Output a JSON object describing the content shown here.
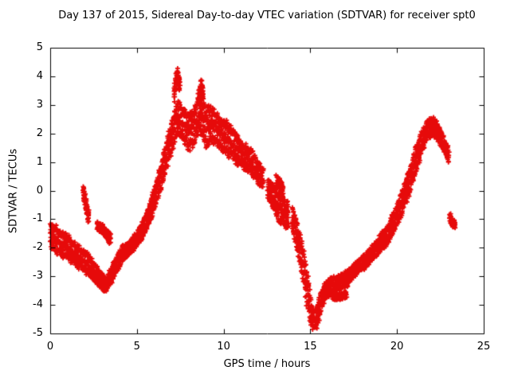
{
  "chart_data": {
    "type": "scatter",
    "title": "Day 137 of 2015, Sidereal Day-to-day VTEC variation (SDTVAR) for receiver spt0",
    "xlabel": "GPS time / hours",
    "ylabel": "SDTVAR / TECUs",
    "xlim": [
      0,
      25
    ],
    "ylim": [
      -5,
      5
    ],
    "xticks": [
      0,
      5,
      10,
      15,
      20,
      25
    ],
    "yticks": [
      -5,
      -4,
      -3,
      -2,
      -1,
      0,
      1,
      2,
      3,
      4,
      5
    ],
    "grid": false,
    "legend": "none",
    "marker": "plus",
    "marker_color": "#e60a0a",
    "axis_color": "#000000",
    "series": [
      {
        "name": "sdtvar-main-segment-1",
        "anchors": [
          [
            0.0,
            -1.5,
            0.6
          ],
          [
            0.3,
            -1.7,
            0.6
          ],
          [
            0.7,
            -1.9,
            0.6
          ],
          [
            1.0,
            -2.0,
            0.6
          ],
          [
            1.4,
            -2.2,
            0.55
          ],
          [
            1.8,
            -2.4,
            0.5
          ],
          [
            2.2,
            -2.6,
            0.5
          ],
          [
            2.6,
            -2.9,
            0.45
          ],
          [
            3.0,
            -3.2,
            0.35
          ],
          [
            3.2,
            -3.3,
            0.3
          ],
          [
            3.5,
            -3.0,
            0.35
          ],
          [
            3.8,
            -2.6,
            0.35
          ],
          [
            4.2,
            -2.2,
            0.35
          ],
          [
            4.6,
            -2.0,
            0.3
          ],
          [
            5.0,
            -1.7,
            0.35
          ],
          [
            5.4,
            -1.3,
            0.4
          ],
          [
            5.8,
            -0.7,
            0.45
          ],
          [
            6.2,
            0.1,
            0.55
          ],
          [
            6.6,
            1.0,
            0.65
          ],
          [
            7.0,
            1.9,
            0.75
          ],
          [
            7.3,
            2.5,
            0.8
          ],
          [
            7.6,
            2.4,
            0.8
          ],
          [
            8.0,
            2.0,
            0.9
          ],
          [
            8.3,
            2.3,
            0.85
          ],
          [
            8.6,
            2.7,
            0.8
          ],
          [
            9.0,
            2.2,
            0.9
          ],
          [
            9.3,
            2.4,
            0.8
          ],
          [
            9.7,
            2.1,
            0.8
          ],
          [
            10.0,
            1.9,
            0.8
          ],
          [
            10.4,
            1.7,
            0.75
          ],
          [
            10.8,
            1.4,
            0.7
          ],
          [
            11.2,
            1.2,
            0.65
          ],
          [
            11.6,
            1.0,
            0.6
          ],
          [
            12.0,
            0.6,
            0.5
          ],
          [
            12.3,
            0.4,
            0.45
          ]
        ]
      },
      {
        "name": "sdtvar-main-segment-2",
        "anchors": [
          [
            12.55,
            0.1,
            0.5
          ],
          [
            12.9,
            -0.3,
            0.6
          ],
          [
            13.2,
            -0.6,
            0.7
          ],
          [
            13.5,
            -0.8,
            0.7
          ],
          [
            13.75,
            -0.9,
            0.6
          ]
        ]
      },
      {
        "name": "sdtvar-main-segment-3",
        "anchors": [
          [
            13.95,
            -1.0,
            0.55
          ],
          [
            14.2,
            -1.5,
            0.65
          ],
          [
            14.5,
            -2.3,
            0.8
          ],
          [
            14.8,
            -3.3,
            0.85
          ],
          [
            15.0,
            -4.1,
            0.7
          ],
          [
            15.15,
            -4.5,
            0.5
          ],
          [
            15.35,
            -4.5,
            0.45
          ],
          [
            15.6,
            -3.9,
            0.5
          ],
          [
            15.9,
            -3.5,
            0.4
          ],
          [
            16.3,
            -3.3,
            0.35
          ],
          [
            16.7,
            -3.2,
            0.35
          ],
          [
            17.1,
            -3.1,
            0.35
          ],
          [
            17.5,
            -2.8,
            0.3
          ],
          [
            17.9,
            -2.6,
            0.3
          ],
          [
            18.3,
            -2.4,
            0.35
          ],
          [
            18.7,
            -2.1,
            0.35
          ],
          [
            19.1,
            -1.8,
            0.4
          ],
          [
            19.5,
            -1.5,
            0.45
          ],
          [
            19.9,
            -1.0,
            0.5
          ],
          [
            20.3,
            -0.4,
            0.55
          ],
          [
            20.7,
            0.3,
            0.6
          ],
          [
            21.1,
            1.1,
            0.6
          ],
          [
            21.5,
            1.8,
            0.55
          ],
          [
            21.8,
            2.2,
            0.45
          ],
          [
            22.1,
            2.25,
            0.4
          ],
          [
            22.4,
            2.0,
            0.4
          ],
          [
            22.7,
            1.6,
            0.35
          ],
          [
            23.0,
            1.2,
            0.3
          ]
        ]
      },
      {
        "name": "branch-streak-2h",
        "anchors": [
          [
            1.9,
            0.0,
            0.25
          ],
          [
            2.0,
            -0.3,
            0.3
          ],
          [
            2.1,
            -0.6,
            0.3
          ],
          [
            2.25,
            -1.0,
            0.3
          ]
        ]
      },
      {
        "name": "branch-upper-3h",
        "anchors": [
          [
            2.7,
            -1.2,
            0.2
          ],
          [
            3.1,
            -1.4,
            0.2
          ],
          [
            3.5,
            -1.7,
            0.25
          ]
        ]
      },
      {
        "name": "spike-7h",
        "anchors": [
          [
            7.15,
            3.3,
            0.35
          ],
          [
            7.25,
            3.9,
            0.35
          ],
          [
            7.35,
            4.1,
            0.25
          ],
          [
            7.5,
            3.6,
            0.3
          ]
        ]
      },
      {
        "name": "spike-8p7h",
        "anchors": [
          [
            8.55,
            3.2,
            0.3
          ],
          [
            8.7,
            3.7,
            0.3
          ],
          [
            8.85,
            3.3,
            0.25
          ]
        ]
      },
      {
        "name": "cluster-13h-upper",
        "anchors": [
          [
            13.05,
            0.35,
            0.3
          ],
          [
            13.25,
            0.2,
            0.3
          ],
          [
            13.45,
            -0.1,
            0.3
          ]
        ]
      },
      {
        "name": "branch-low-16h",
        "anchors": [
          [
            16.3,
            -3.7,
            0.15
          ],
          [
            16.7,
            -3.72,
            0.15
          ],
          [
            17.1,
            -3.62,
            0.15
          ]
        ]
      },
      {
        "name": "cluster-23h-low",
        "anchors": [
          [
            23.05,
            -0.95,
            0.2
          ],
          [
            23.2,
            -1.1,
            0.2
          ],
          [
            23.35,
            -1.2,
            0.15
          ]
        ]
      }
    ],
    "render_hints": {
      "seed": 20150137,
      "step_hours": 0.02,
      "tracks": 3,
      "x_jitter": 0.06,
      "marker_size": 3,
      "marker_line_width": 1.8,
      "tick_length": 6
    }
  }
}
